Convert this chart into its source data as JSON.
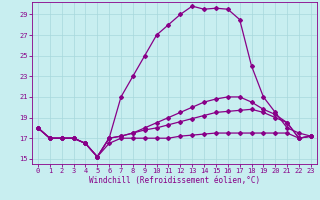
{
  "xlabel": "Windchill (Refroidissement éolien,°C)",
  "bg_color": "#c8eef0",
  "grid_color": "#a8d8dc",
  "line_color": "#880088",
  "xlim": [
    -0.5,
    23.5
  ],
  "ylim": [
    14.5,
    30.2
  ],
  "yticks": [
    15,
    17,
    19,
    21,
    23,
    25,
    27,
    29
  ],
  "xticks": [
    0,
    1,
    2,
    3,
    4,
    5,
    6,
    7,
    8,
    9,
    10,
    11,
    12,
    13,
    14,
    15,
    16,
    17,
    18,
    19,
    20,
    21,
    22,
    23
  ],
  "line1_x": [
    0,
    1,
    2,
    3,
    4,
    5,
    6,
    7,
    8,
    9,
    10,
    11,
    12,
    13,
    14,
    15,
    16,
    17,
    18,
    19,
    20,
    21,
    22,
    23
  ],
  "line1_y": [
    18.0,
    17.0,
    17.0,
    17.0,
    16.5,
    15.2,
    17.0,
    21.0,
    23.0,
    25.0,
    27.0,
    28.0,
    29.0,
    29.8,
    29.5,
    29.6,
    29.5,
    28.5,
    24.0,
    21.0,
    19.5,
    18.0,
    17.5,
    17.2
  ],
  "line2_x": [
    0,
    1,
    2,
    3,
    4,
    5,
    6,
    7,
    8,
    9,
    10,
    11,
    12,
    13,
    14,
    15,
    16,
    17,
    18,
    19,
    20,
    21,
    22,
    23
  ],
  "line2_y": [
    18.0,
    17.0,
    17.0,
    17.0,
    16.5,
    15.2,
    17.0,
    17.2,
    17.5,
    18.0,
    18.5,
    19.0,
    19.5,
    20.0,
    20.5,
    20.8,
    21.0,
    21.0,
    20.5,
    19.8,
    19.3,
    18.5,
    17.0,
    17.2
  ],
  "line3_x": [
    0,
    1,
    2,
    3,
    4,
    5,
    6,
    7,
    8,
    9,
    10,
    11,
    12,
    13,
    14,
    15,
    16,
    17,
    18,
    19,
    20,
    21,
    22,
    23
  ],
  "line3_y": [
    18.0,
    17.0,
    17.0,
    17.0,
    16.5,
    15.2,
    17.0,
    17.2,
    17.5,
    17.8,
    18.0,
    18.3,
    18.6,
    18.9,
    19.2,
    19.5,
    19.6,
    19.7,
    19.8,
    19.5,
    19.0,
    18.5,
    17.0,
    17.2
  ],
  "line4_x": [
    0,
    1,
    2,
    3,
    4,
    5,
    6,
    7,
    8,
    9,
    10,
    11,
    12,
    13,
    14,
    15,
    16,
    17,
    18,
    19,
    20,
    21,
    22,
    23
  ],
  "line4_y": [
    18.0,
    17.0,
    17.0,
    17.0,
    16.5,
    15.2,
    16.5,
    17.0,
    17.0,
    17.0,
    17.0,
    17.0,
    17.2,
    17.3,
    17.4,
    17.5,
    17.5,
    17.5,
    17.5,
    17.5,
    17.5,
    17.5,
    17.0,
    17.2
  ],
  "xlabel_fontsize": 5.5,
  "tick_fontsize": 5.0,
  "marker_size": 2.0,
  "line_width": 0.9
}
